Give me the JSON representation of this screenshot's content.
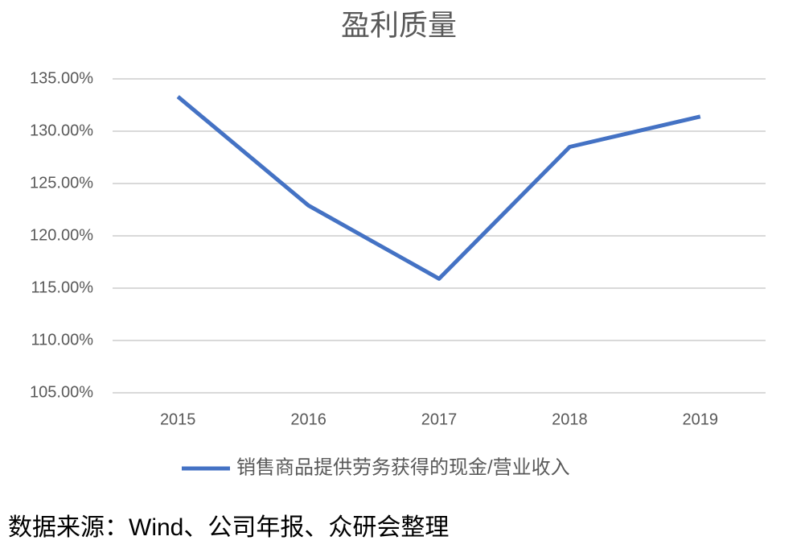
{
  "chart_data": {
    "type": "line",
    "title": "盈利质量",
    "categories": [
      "2015",
      "2016",
      "2017",
      "2018",
      "2019"
    ],
    "series": [
      {
        "name": "销售商品提供劳务获得的现金/营业收入",
        "color": "#4472c4",
        "values": [
          133.3,
          122.9,
          115.9,
          128.5,
          131.4
        ]
      }
    ],
    "ylim": [
      105,
      135
    ],
    "yticks": [
      {
        "value": 105,
        "label": "105.00%"
      },
      {
        "value": 110,
        "label": "110.00%"
      },
      {
        "value": 115,
        "label": "115.00%"
      },
      {
        "value": 120,
        "label": "120.00%"
      },
      {
        "value": 125,
        "label": "125.00%"
      },
      {
        "value": 130,
        "label": "130.00%"
      },
      {
        "value": 135,
        "label": "135.00%"
      }
    ],
    "grid": true,
    "legend": "bottom",
    "source": "数据来源：Wind、公司年报、众研会整理"
  }
}
